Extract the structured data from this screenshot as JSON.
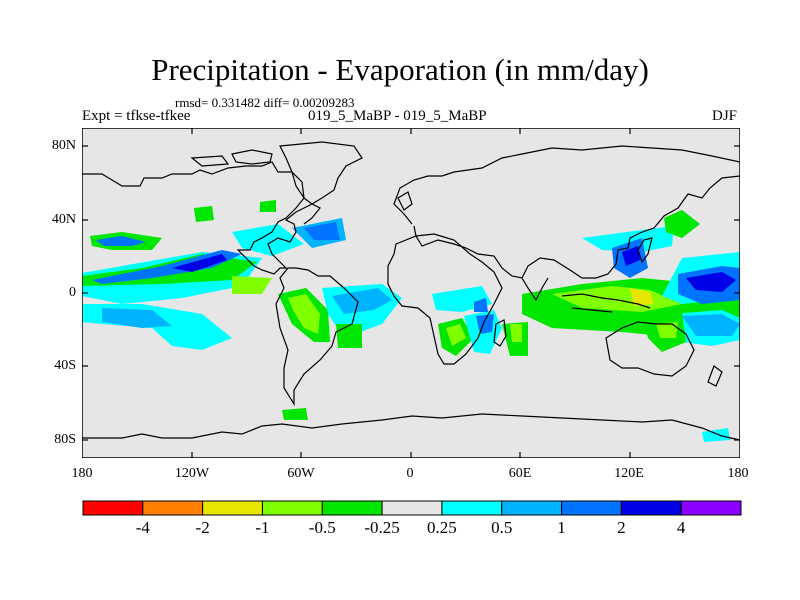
{
  "title": "Precipitation - Evaporation (in mm/day)",
  "stats": "rmsd= 0.331482 diff= 0.00209283",
  "expt_label": "Expt = tfkse-tfkee",
  "case_label": "019_5_MaBP - 019_5_MaBP",
  "season": "DJF",
  "lat_labels": [
    "80N",
    "40N",
    "0",
    "40S",
    "80S"
  ],
  "lon_labels": [
    "180",
    "120W",
    "60W",
    "0",
    "60E",
    "120E",
    "180"
  ],
  "colorbar": {
    "colors": [
      "#ff0000",
      "#ff8000",
      "#e6e600",
      "#80ff00",
      "#00e600",
      "#e6e6e6",
      "#00ffff",
      "#00b3ff",
      "#0073ff",
      "#0000e6",
      "#8c00ff"
    ],
    "labels": [
      "-4",
      "-2",
      "-1",
      "-0.5",
      "-0.25",
      "0.25",
      "0.5",
      "1",
      "2",
      "4"
    ]
  },
  "map": {
    "background": "#e6e6e6",
    "coastline_color": "#000000"
  }
}
